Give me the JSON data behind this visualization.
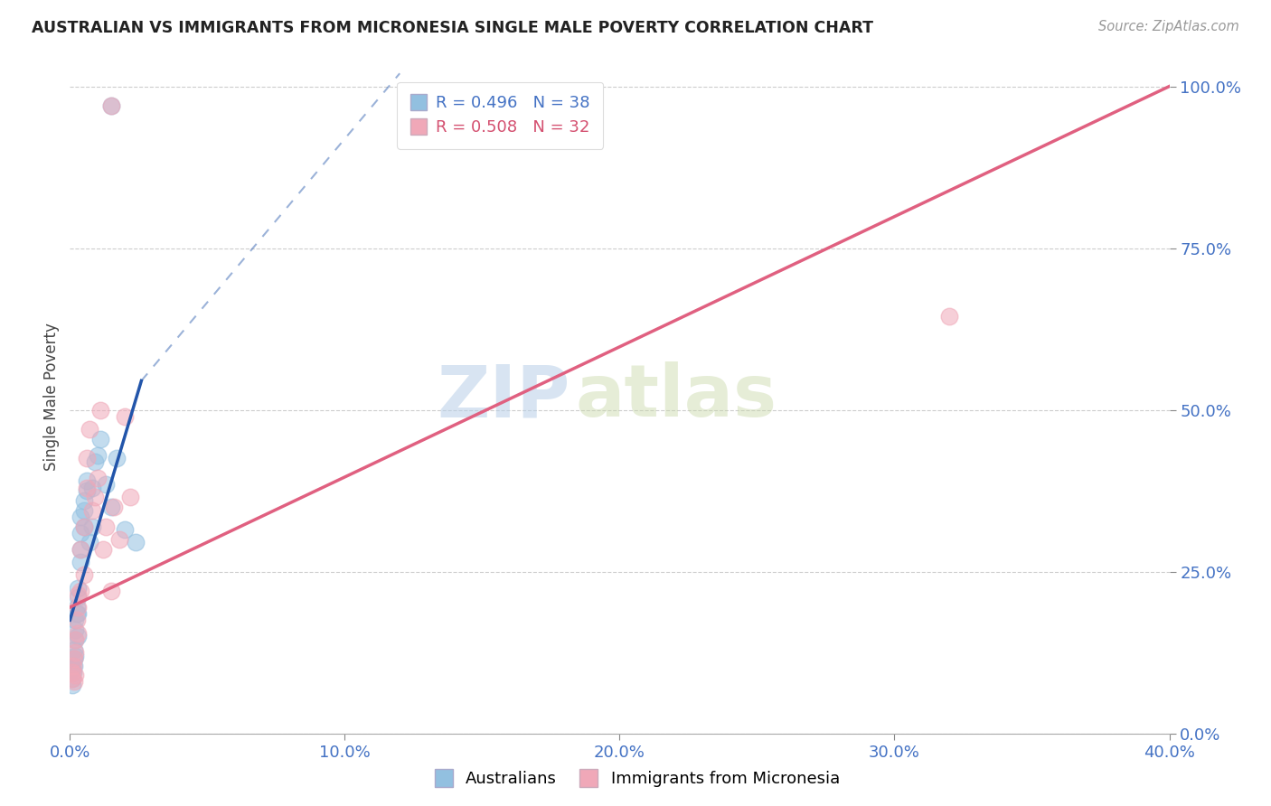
{
  "title": "AUSTRALIAN VS IMMIGRANTS FROM MICRONESIA SINGLE MALE POVERTY CORRELATION CHART",
  "source": "Source: ZipAtlas.com",
  "ylabel": "Single Male Poverty",
  "watermark_zip": "ZIP",
  "watermark_atlas": "atlas",
  "xlim": [
    0.0,
    0.4
  ],
  "ylim": [
    0.0,
    1.04
  ],
  "xticks": [
    0.0,
    0.1,
    0.2,
    0.3,
    0.4
  ],
  "yticks": [
    0.0,
    0.25,
    0.5,
    0.75,
    1.0
  ],
  "legend1_r": "0.496",
  "legend1_n": "38",
  "legend2_r": "0.508",
  "legend2_n": "32",
  "blue_scatter_color": "#92c0e0",
  "pink_scatter_color": "#f0a8b8",
  "blue_line_color": "#2255aa",
  "pink_line_color": "#e06080",
  "blue_line_x0": 0.0,
  "blue_line_y0": 0.175,
  "blue_line_x1": 0.026,
  "blue_line_y1": 0.545,
  "dash_line_x0": 0.026,
  "dash_line_y0": 0.545,
  "dash_line_x1": 0.12,
  "dash_line_y1": 1.02,
  "pink_line_x0": 0.0,
  "pink_line_y0": 0.195,
  "pink_line_x1": 0.4,
  "pink_line_y1": 1.0,
  "australians_x": [
    0.0008,
    0.001,
    0.001,
    0.0012,
    0.0015,
    0.0015,
    0.0015,
    0.002,
    0.002,
    0.002,
    0.002,
    0.0025,
    0.0025,
    0.003,
    0.003,
    0.003,
    0.003,
    0.004,
    0.004,
    0.004,
    0.004,
    0.005,
    0.005,
    0.005,
    0.006,
    0.006,
    0.007,
    0.008,
    0.008,
    0.009,
    0.01,
    0.011,
    0.013,
    0.015,
    0.017,
    0.02,
    0.024,
    0.015
  ],
  "australians_y": [
    0.075,
    0.085,
    0.1,
    0.095,
    0.105,
    0.115,
    0.13,
    0.12,
    0.145,
    0.16,
    0.175,
    0.185,
    0.195,
    0.15,
    0.185,
    0.21,
    0.225,
    0.265,
    0.285,
    0.31,
    0.335,
    0.32,
    0.345,
    0.36,
    0.375,
    0.39,
    0.295,
    0.32,
    0.38,
    0.42,
    0.43,
    0.455,
    0.385,
    0.35,
    0.425,
    0.315,
    0.295,
    0.97
  ],
  "micronesia_x": [
    0.0008,
    0.001,
    0.0012,
    0.0015,
    0.0015,
    0.002,
    0.002,
    0.002,
    0.0025,
    0.003,
    0.003,
    0.003,
    0.004,
    0.004,
    0.005,
    0.005,
    0.006,
    0.006,
    0.007,
    0.008,
    0.009,
    0.01,
    0.011,
    0.012,
    0.013,
    0.015,
    0.016,
    0.018,
    0.02,
    0.022,
    0.32,
    0.015
  ],
  "micronesia_y": [
    0.085,
    0.095,
    0.105,
    0.08,
    0.115,
    0.09,
    0.125,
    0.145,
    0.175,
    0.155,
    0.195,
    0.215,
    0.22,
    0.285,
    0.245,
    0.32,
    0.38,
    0.425,
    0.47,
    0.345,
    0.365,
    0.395,
    0.5,
    0.285,
    0.32,
    0.22,
    0.35,
    0.3,
    0.49,
    0.365,
    0.645,
    0.97
  ],
  "background_color": "#ffffff",
  "grid_color": "#c8c8c8",
  "scatter_size": 180
}
